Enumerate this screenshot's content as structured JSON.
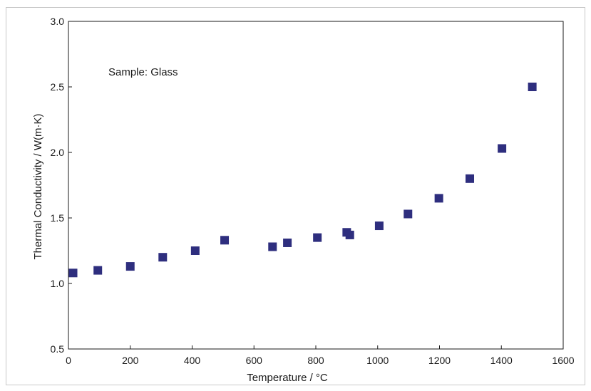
{
  "chart_data": {
    "type": "scatter",
    "title": "",
    "xlabel": "Temperature /  °C",
    "ylabel": "Thermal Conductivity / W(m·K)",
    "annotation": "Sample: Glass",
    "xlim": [
      0,
      1600
    ],
    "ylim": [
      0.5,
      3.0
    ],
    "x_ticks": [
      "0",
      "200",
      "400",
      "600",
      "800",
      "1000",
      "1200",
      "1400",
      "1600"
    ],
    "y_ticks": [
      "0.5",
      "1.0",
      "1.5",
      "2.0",
      "2.5",
      "3.0"
    ],
    "grid": false,
    "marker_color": "#2e2e7e",
    "series": [
      {
        "points": [
          {
            "x": 15,
            "y": 1.08
          },
          {
            "x": 95,
            "y": 1.1
          },
          {
            "x": 200,
            "y": 1.13
          },
          {
            "x": 305,
            "y": 1.2
          },
          {
            "x": 410,
            "y": 1.25
          },
          {
            "x": 505,
            "y": 1.33
          },
          {
            "x": 660,
            "y": 1.28
          },
          {
            "x": 708,
            "y": 1.31
          },
          {
            "x": 805,
            "y": 1.35
          },
          {
            "x": 900,
            "y": 1.39
          },
          {
            "x": 910,
            "y": 1.37
          },
          {
            "x": 1005,
            "y": 1.44
          },
          {
            "x": 1098,
            "y": 1.53
          },
          {
            "x": 1198,
            "y": 1.65
          },
          {
            "x": 1298,
            "y": 1.8
          },
          {
            "x": 1402,
            "y": 2.03
          },
          {
            "x": 1500,
            "y": 2.5
          }
        ]
      }
    ]
  }
}
